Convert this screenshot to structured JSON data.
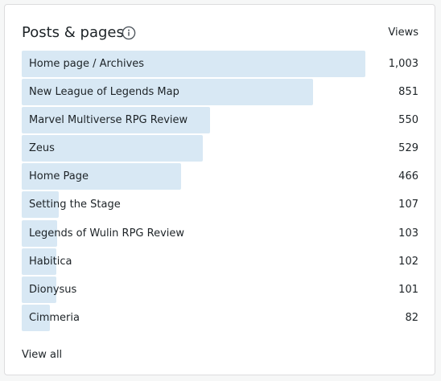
{
  "card": {
    "title": "Posts & pages",
    "views_header": "Views",
    "info_icon": "info-circle-icon",
    "view_all_label": "View all",
    "bar_color": "#d8e8f4",
    "max_views": 1003
  },
  "posts": [
    {
      "label": "Home page / Archives",
      "value_text": "1,003",
      "views": 1003
    },
    {
      "label": "New League of Legends Map",
      "value_text": "851",
      "views": 851
    },
    {
      "label": "Marvel Multiverse RPG Review",
      "value_text": "550",
      "views": 550
    },
    {
      "label": "Zeus",
      "value_text": "529",
      "views": 529
    },
    {
      "label": "Home Page",
      "value_text": "466",
      "views": 466
    },
    {
      "label": "Setting the Stage",
      "value_text": "107",
      "views": 107
    },
    {
      "label": "Legends of Wulin RPG Review",
      "value_text": "103",
      "views": 103
    },
    {
      "label": "Habitica",
      "value_text": "102",
      "views": 102
    },
    {
      "label": "Dionysus",
      "value_text": "101",
      "views": 101
    },
    {
      "label": "Cimmeria",
      "value_text": "82",
      "views": 82
    }
  ]
}
